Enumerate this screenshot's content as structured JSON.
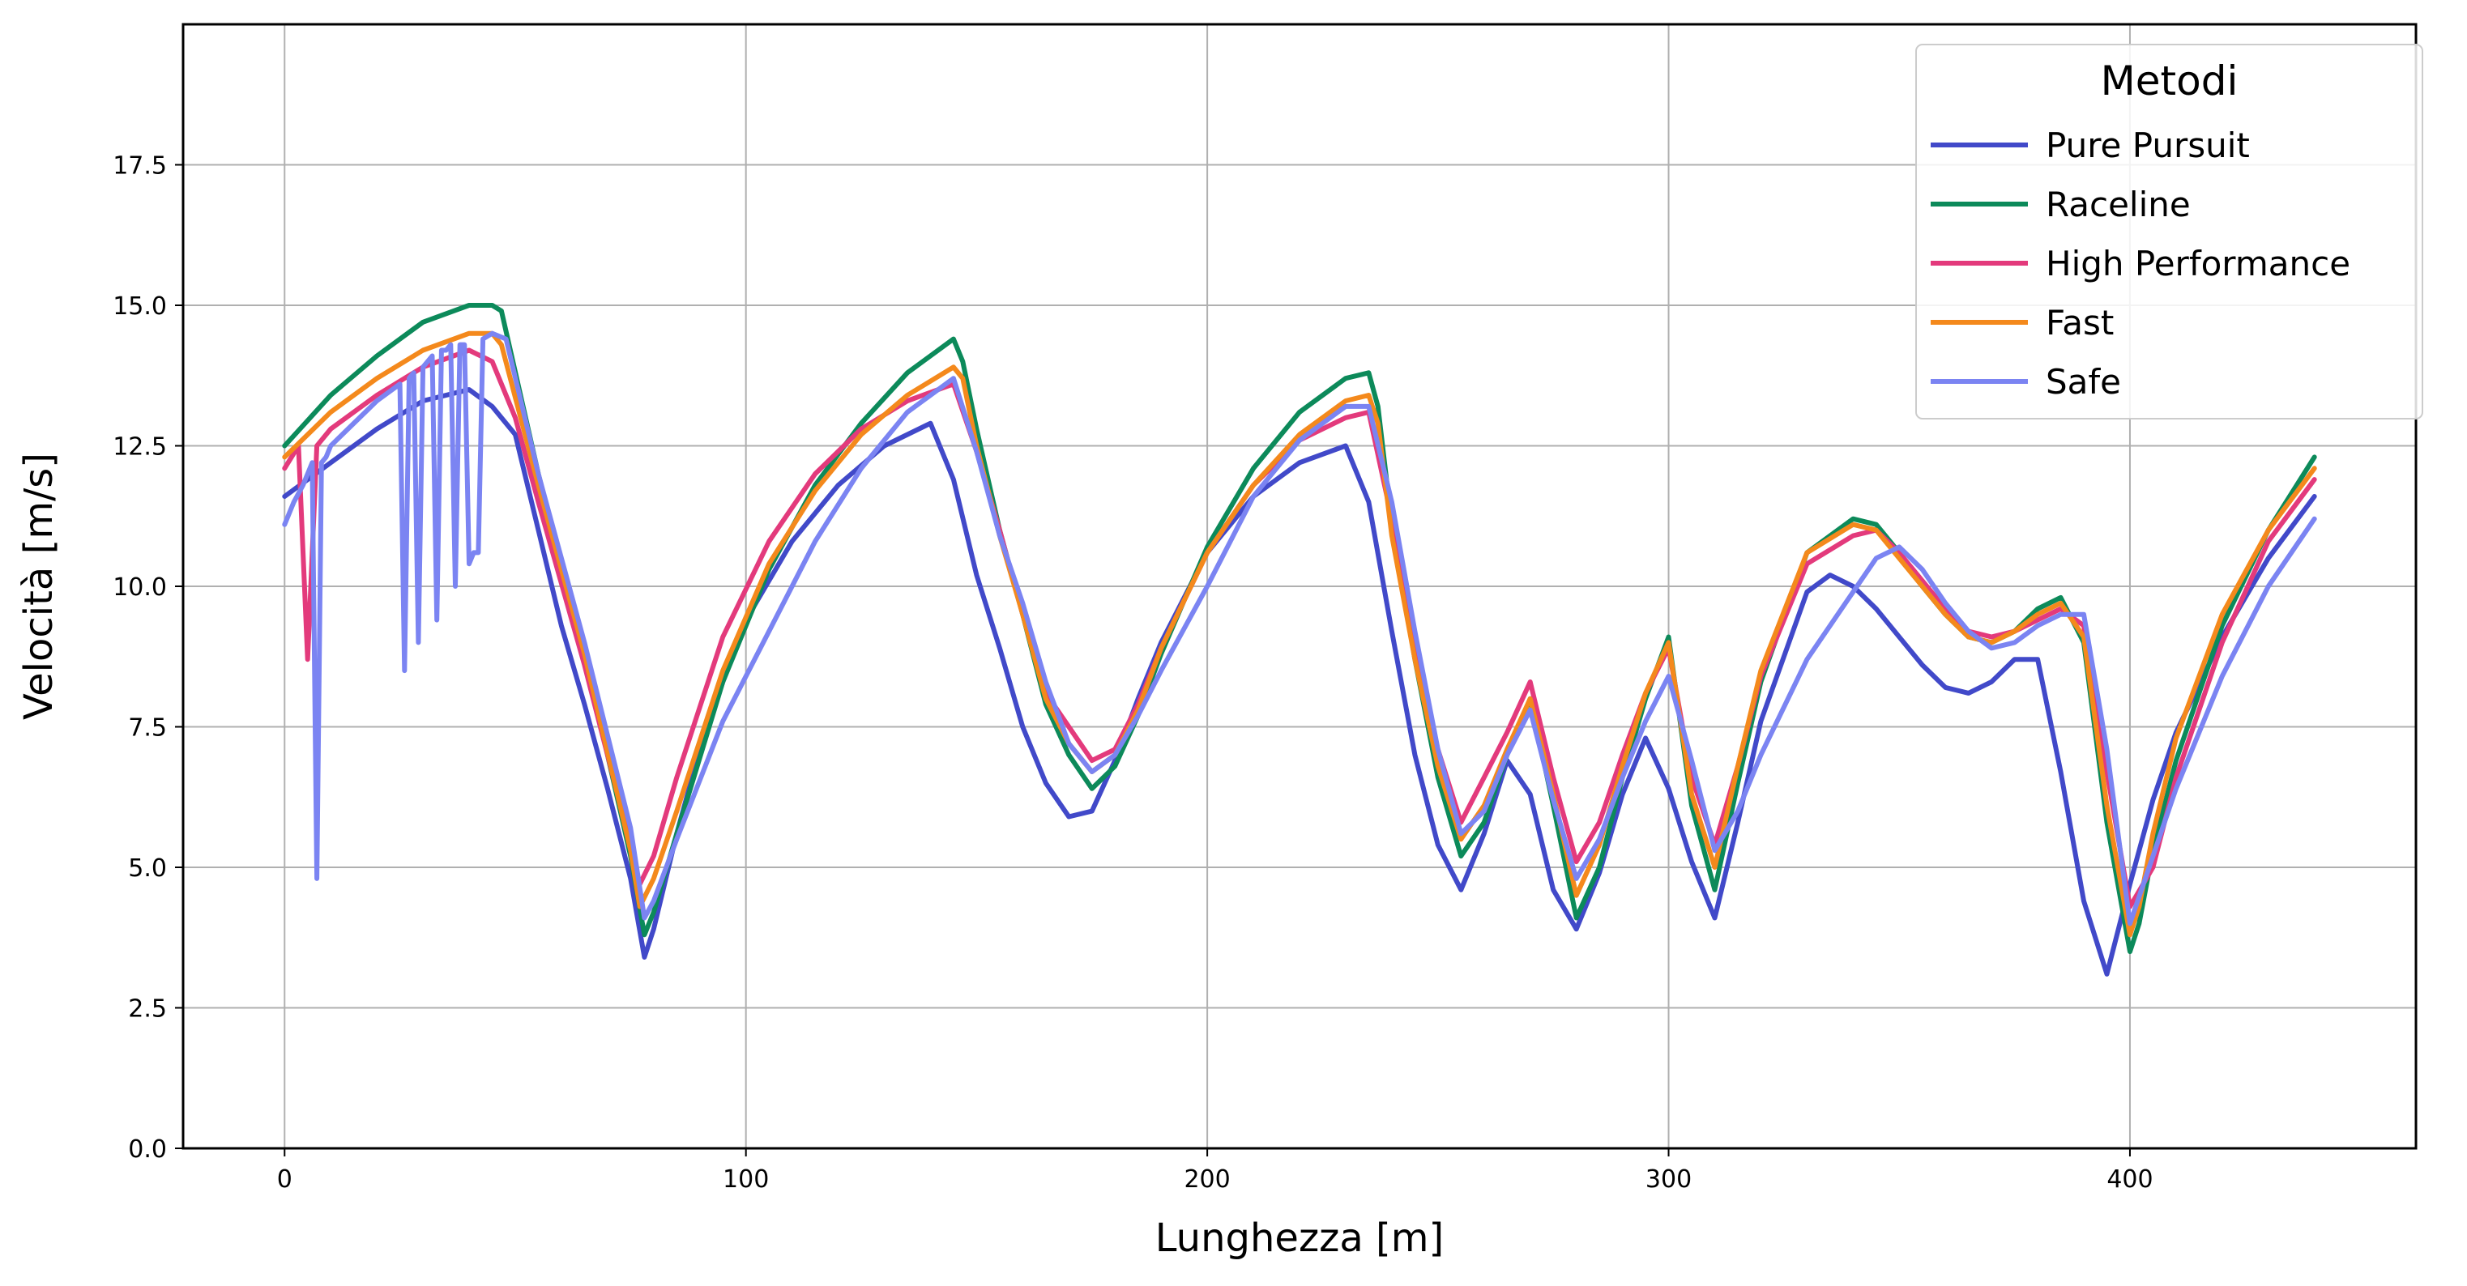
{
  "chart_data": {
    "type": "line",
    "xlabel": "Lunghezza [m]",
    "ylabel": "Velocità [m/s]",
    "xlim": [
      -22,
      462
    ],
    "ylim": [
      0,
      20
    ],
    "xticks": [
      0,
      100,
      200,
      300,
      400
    ],
    "yticks": [
      0.0,
      2.5,
      5.0,
      7.5,
      10.0,
      12.5,
      15.0,
      17.5
    ],
    "ytick_labels": [
      "0.0",
      "2.5",
      "5.0",
      "7.5",
      "10.0",
      "12.5",
      "15.0",
      "17.5"
    ],
    "grid": true,
    "legend": {
      "title": "Metodi",
      "placement": "top-right"
    },
    "series": [
      {
        "name": "Pure Pursuit",
        "color": "#4149c9",
        "x": [
          0,
          10,
          20,
          30,
          40,
          45,
          50,
          55,
          60,
          65,
          70,
          75,
          78,
          80,
          85,
          90,
          95,
          100,
          110,
          120,
          130,
          140,
          145,
          150,
          155,
          160,
          165,
          170,
          175,
          180,
          185,
          190,
          200,
          210,
          220,
          230,
          235,
          240,
          245,
          250,
          255,
          260,
          265,
          270,
          275,
          280,
          285,
          290,
          295,
          300,
          305,
          310,
          315,
          320,
          330,
          335,
          340,
          345,
          350,
          355,
          360,
          365,
          370,
          375,
          380,
          385,
          390,
          395,
          400,
          405,
          410,
          420,
          430,
          440
        ],
        "y": [
          11.6,
          12.2,
          12.8,
          13.3,
          13.5,
          13.2,
          12.7,
          11.0,
          9.3,
          7.9,
          6.4,
          4.8,
          3.4,
          3.9,
          5.6,
          7.1,
          8.3,
          9.4,
          10.8,
          11.8,
          12.5,
          12.9,
          11.9,
          10.2,
          8.9,
          7.5,
          6.5,
          5.9,
          6.0,
          6.9,
          8.0,
          9.0,
          10.6,
          11.6,
          12.2,
          12.5,
          11.5,
          9.2,
          7.0,
          5.4,
          4.6,
          5.6,
          6.9,
          6.3,
          4.6,
          3.9,
          4.9,
          6.3,
          7.3,
          6.4,
          5.1,
          4.1,
          5.8,
          7.6,
          9.9,
          10.2,
          10.0,
          9.6,
          9.1,
          8.6,
          8.2,
          8.1,
          8.3,
          8.7,
          8.7,
          6.7,
          4.4,
          3.1,
          4.7,
          6.2,
          7.4,
          9.1,
          10.5,
          11.6
        ]
      },
      {
        "name": "Raceline",
        "color": "#0c8a5a",
        "x": [
          0,
          10,
          20,
          30,
          40,
          45,
          47,
          55,
          65,
          75,
          78,
          80,
          85,
          95,
          105,
          115,
          125,
          135,
          145,
          147,
          150,
          155,
          160,
          165,
          170,
          175,
          180,
          185,
          190,
          200,
          210,
          220,
          230,
          235,
          237,
          240,
          245,
          250,
          255,
          260,
          265,
          270,
          275,
          280,
          285,
          290,
          295,
          300,
          305,
          310,
          315,
          320,
          330,
          340,
          345,
          350,
          355,
          360,
          365,
          370,
          375,
          380,
          385,
          390,
          395,
          400,
          402,
          405,
          410,
          420,
          430,
          440
        ],
        "y": [
          12.5,
          13.4,
          14.1,
          14.7,
          15.0,
          15.0,
          14.9,
          12.0,
          8.8,
          5.2,
          3.8,
          4.2,
          5.6,
          8.3,
          10.3,
          11.8,
          12.9,
          13.8,
          14.4,
          14.0,
          12.8,
          11.0,
          9.5,
          7.9,
          7.0,
          6.4,
          6.8,
          7.7,
          8.8,
          10.7,
          12.1,
          13.1,
          13.7,
          13.8,
          13.2,
          11.1,
          8.7,
          6.6,
          5.2,
          5.8,
          7.0,
          8.0,
          6.1,
          4.1,
          5.0,
          6.6,
          8.0,
          9.1,
          6.1,
          4.6,
          6.5,
          8.3,
          10.6,
          11.2,
          11.1,
          10.6,
          10.0,
          9.5,
          9.1,
          9.0,
          9.2,
          9.6,
          9.8,
          9.0,
          5.8,
          3.5,
          4.0,
          5.3,
          6.9,
          9.3,
          11.0,
          12.3
        ]
      },
      {
        "name": "High Performance",
        "color": "#e33a7c",
        "x": [
          0,
          3,
          5,
          7,
          10,
          20,
          30,
          40,
          45,
          50,
          55,
          65,
          75,
          77,
          80,
          85,
          95,
          105,
          115,
          125,
          135,
          145,
          150,
          155,
          160,
          165,
          170,
          175,
          180,
          185,
          190,
          200,
          210,
          220,
          230,
          235,
          240,
          245,
          250,
          255,
          260,
          265,
          270,
          275,
          280,
          285,
          290,
          295,
          300,
          305,
          310,
          315,
          320,
          330,
          340,
          345,
          350,
          355,
          360,
          365,
          370,
          375,
          380,
          385,
          390,
          395,
          400,
          405,
          410,
          420,
          430,
          440
        ],
        "y": [
          12.1,
          12.5,
          8.7,
          12.5,
          12.8,
          13.4,
          13.9,
          14.2,
          14.0,
          13.0,
          11.5,
          8.6,
          5.4,
          4.7,
          5.2,
          6.6,
          9.1,
          10.8,
          12.0,
          12.8,
          13.3,
          13.6,
          12.4,
          11.0,
          9.5,
          8.1,
          7.5,
          6.9,
          7.1,
          7.9,
          8.9,
          10.6,
          11.8,
          12.6,
          13.0,
          13.1,
          11.2,
          8.9,
          7.1,
          5.8,
          6.6,
          7.4,
          8.3,
          6.6,
          5.1,
          5.8,
          7.0,
          8.1,
          8.9,
          6.6,
          5.4,
          6.8,
          8.4,
          10.4,
          10.9,
          11.0,
          10.6,
          10.1,
          9.6,
          9.2,
          9.1,
          9.2,
          9.4,
          9.6,
          9.3,
          6.7,
          4.3,
          5.0,
          6.6,
          9.0,
          10.8,
          11.9
        ]
      },
      {
        "name": "Fast",
        "color": "#f4891c",
        "x": [
          0,
          10,
          20,
          30,
          40,
          45,
          47,
          55,
          65,
          75,
          77,
          80,
          85,
          95,
          105,
          115,
          125,
          135,
          145,
          147,
          150,
          155,
          160,
          165,
          170,
          175,
          180,
          185,
          190,
          200,
          210,
          220,
          230,
          235,
          237,
          240,
          245,
          250,
          255,
          260,
          265,
          270,
          275,
          280,
          285,
          290,
          295,
          300,
          305,
          310,
          315,
          320,
          330,
          340,
          345,
          350,
          355,
          360,
          365,
          370,
          375,
          380,
          385,
          390,
          395,
          400,
          402,
          405,
          410,
          420,
          430,
          440
        ],
        "y": [
          12.3,
          13.1,
          13.7,
          14.2,
          14.5,
          14.5,
          14.3,
          11.8,
          8.8,
          5.3,
          4.3,
          4.8,
          6.0,
          8.5,
          10.4,
          11.7,
          12.7,
          13.4,
          13.9,
          13.7,
          12.5,
          10.9,
          9.5,
          8.0,
          7.2,
          6.7,
          7.0,
          7.8,
          8.9,
          10.6,
          11.8,
          12.7,
          13.3,
          13.4,
          12.9,
          10.9,
          8.7,
          6.8,
          5.5,
          6.1,
          7.1,
          8.0,
          6.3,
          4.5,
          5.4,
          6.8,
          8.1,
          9.0,
          6.3,
          5.0,
          6.8,
          8.5,
          10.6,
          11.1,
          11.0,
          10.5,
          10.0,
          9.5,
          9.1,
          9.0,
          9.2,
          9.5,
          9.7,
          9.1,
          6.1,
          3.8,
          4.3,
          5.6,
          7.3,
          9.5,
          11.0,
          12.1
        ]
      },
      {
        "name": "Safe",
        "color": "#7b84f2",
        "x": [
          0,
          2,
          4,
          6,
          7,
          8,
          9,
          10,
          15,
          20,
          25,
          26,
          27,
          28,
          29,
          30,
          31,
          32,
          33,
          34,
          35,
          36,
          37,
          38,
          39,
          40,
          41,
          42,
          43,
          45,
          48,
          55,
          65,
          75,
          78,
          80,
          85,
          95,
          105,
          115,
          125,
          135,
          145,
          150,
          155,
          160,
          165,
          170,
          175,
          180,
          185,
          190,
          200,
          210,
          220,
          230,
          235,
          240,
          245,
          250,
          255,
          260,
          265,
          270,
          275,
          280,
          285,
          290,
          295,
          300,
          305,
          310,
          315,
          320,
          330,
          340,
          345,
          350,
          355,
          360,
          365,
          370,
          375,
          380,
          385,
          390,
          395,
          400,
          405,
          410,
          420,
          430,
          440
        ],
        "y": [
          11.1,
          11.5,
          11.8,
          12.2,
          4.8,
          12.2,
          12.3,
          12.5,
          12.9,
          13.3,
          13.6,
          8.5,
          13.7,
          13.8,
          9.0,
          13.9,
          14.0,
          14.1,
          9.4,
          14.2,
          14.2,
          14.3,
          10.0,
          14.3,
          14.3,
          10.4,
          10.6,
          10.6,
          14.4,
          14.5,
          14.4,
          12.0,
          9.0,
          5.7,
          4.1,
          4.4,
          5.5,
          7.6,
          9.2,
          10.8,
          12.1,
          13.1,
          13.7,
          12.4,
          10.9,
          9.7,
          8.3,
          7.2,
          6.7,
          7.0,
          7.7,
          8.5,
          10.0,
          11.6,
          12.6,
          13.2,
          13.2,
          11.5,
          9.2,
          7.1,
          5.6,
          6.0,
          7.0,
          7.8,
          6.2,
          4.8,
          5.5,
          6.6,
          7.6,
          8.4,
          6.9,
          5.3,
          6.0,
          7.0,
          8.7,
          9.9,
          10.5,
          10.7,
          10.3,
          9.7,
          9.2,
          8.9,
          9.0,
          9.3,
          9.5,
          9.5,
          7.1,
          4.0,
          5.2,
          6.4,
          8.4,
          10.0,
          11.2
        ]
      }
    ]
  }
}
